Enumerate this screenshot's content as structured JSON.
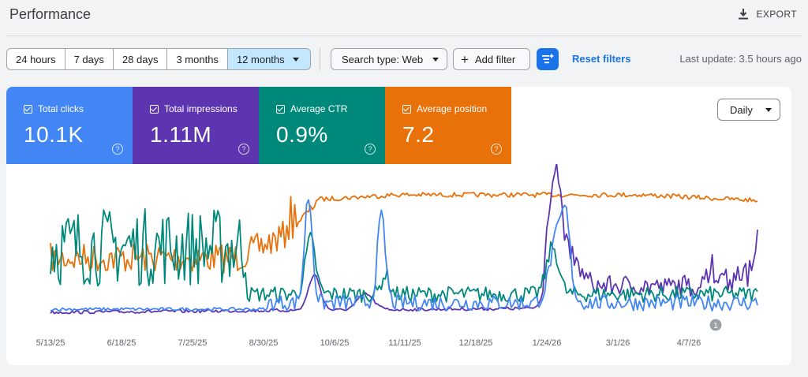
{
  "header": {
    "title": "Performance",
    "export_label": "EXPORT"
  },
  "toolbar": {
    "date_ranges": [
      "24 hours",
      "7 days",
      "28 days",
      "3 months",
      "12 months"
    ],
    "selected_range": "12 months",
    "search_type": "Search type: Web",
    "add_filter": "Add filter",
    "reset_filters": "Reset filters",
    "last_update": "Last update: 3.5 hours ago"
  },
  "metrics": [
    {
      "label": "Total clicks",
      "value": "10.1K",
      "color": "#4285f4",
      "help": "?"
    },
    {
      "label": "Total impressions",
      "value": "1.11M",
      "color": "#5e35b1",
      "help": "?"
    },
    {
      "label": "Average CTR",
      "value": "0.9%",
      "color": "#00897b",
      "help": "?"
    },
    {
      "label": "Average position",
      "value": "7.2",
      "color": "#e8710a",
      "help": "?"
    }
  ],
  "granularity": "Daily",
  "chart_data": {
    "type": "line",
    "x_ticks": [
      "5/13/25",
      "6/18/25",
      "7/25/25",
      "8/30/25",
      "10/6/25",
      "11/11/25",
      "12/18/25",
      "1/24/26",
      "3/1/26",
      "4/7/26"
    ],
    "annotation": "1",
    "grid": false,
    "series": [
      {
        "name": "Average position",
        "color": "#e8710a"
      },
      {
        "name": "Total impressions",
        "color": "#5e35b1"
      },
      {
        "name": "Average CTR",
        "color": "#00897b"
      },
      {
        "name": "Total clicks",
        "color": "#4285f4"
      }
    ]
  }
}
